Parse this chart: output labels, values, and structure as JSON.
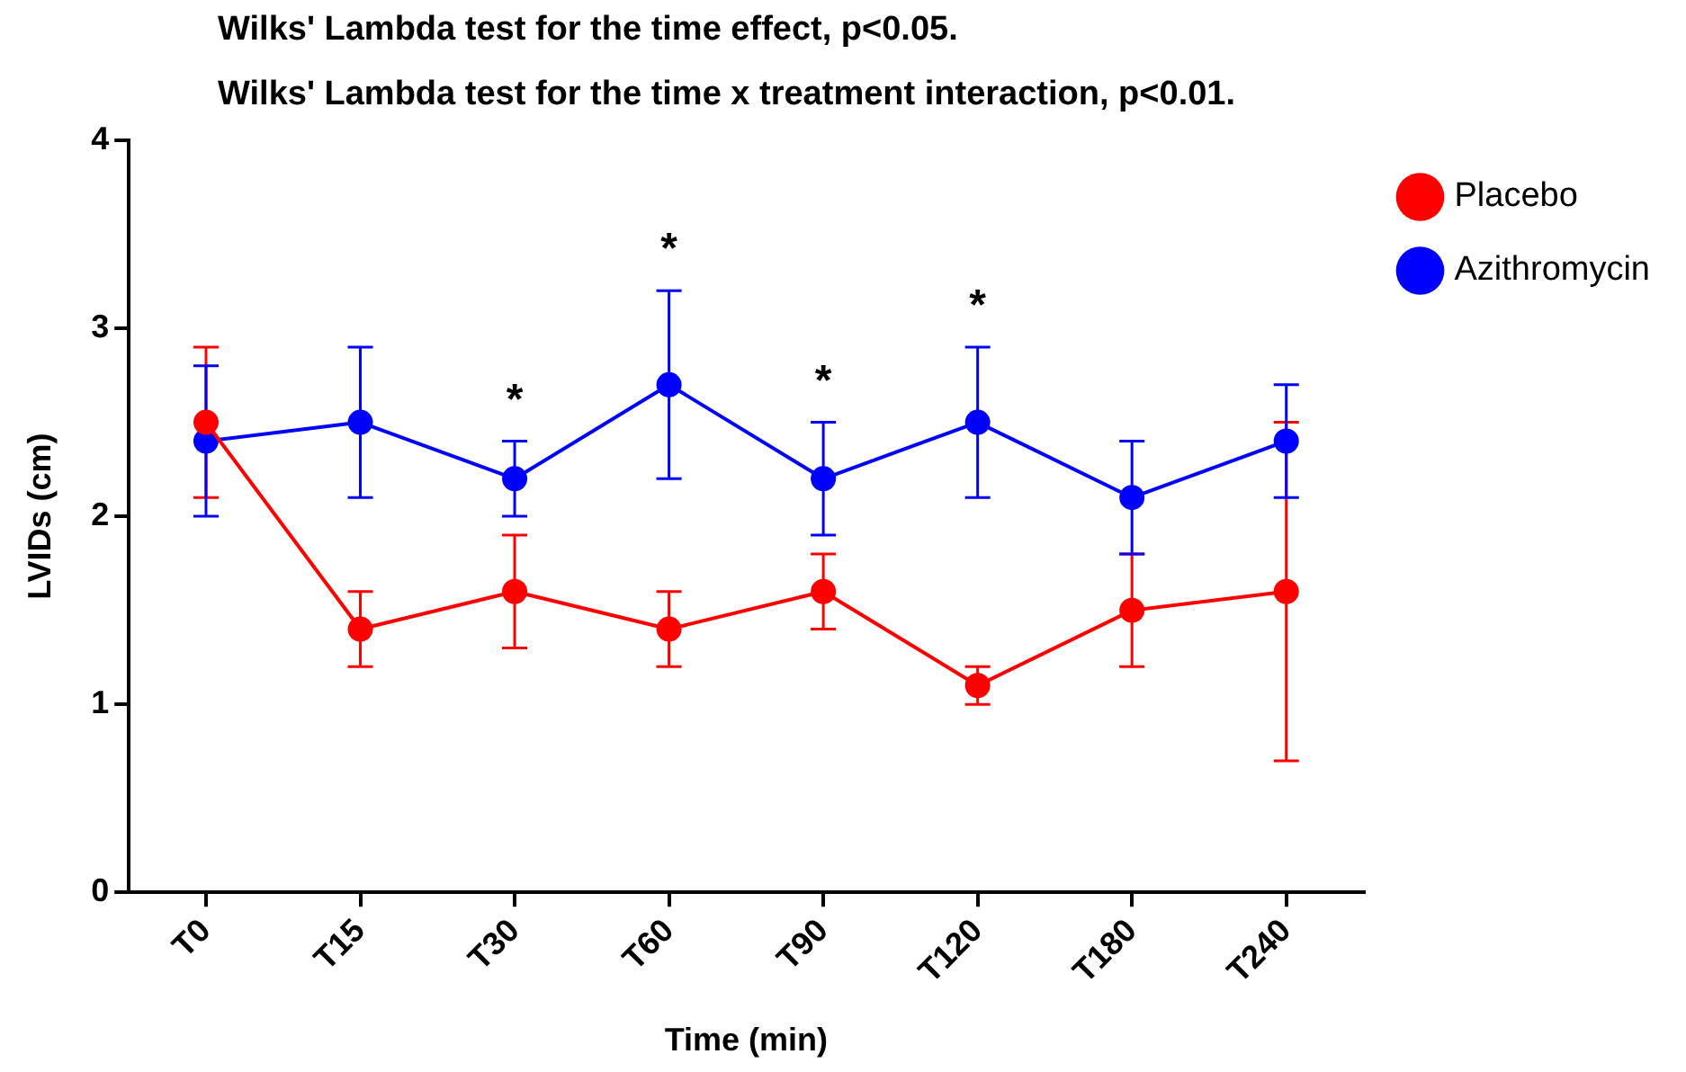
{
  "chart_data": {
    "type": "line",
    "title": "Wilks' Lambda test for the time effect, p<0.05.",
    "subtitle": "Wilks' Lambda test for the time x treatment interaction, p<0.01.",
    "xlabel": "Time (min)",
    "ylabel": "LVIDs (cm)",
    "categories": [
      "T0",
      "T15",
      "T30",
      "T60",
      "T90",
      "T120",
      "T180",
      "T240"
    ],
    "series": [
      {
        "name": "Placebo",
        "color": "#ff0000",
        "values": [
          2.5,
          1.4,
          1.6,
          1.4,
          1.6,
          1.1,
          1.5,
          1.6
        ],
        "errors": [
          [
            2.1,
            2.9
          ],
          [
            1.2,
            1.6
          ],
          [
            1.3,
            1.9
          ],
          [
            1.2,
            1.6
          ],
          [
            1.4,
            1.8
          ],
          [
            1.0,
            1.2
          ],
          [
            1.2,
            1.8
          ],
          [
            0.7,
            2.5
          ]
        ]
      },
      {
        "name": "Azithromycin",
        "color": "#0000ff",
        "values": [
          2.4,
          2.5,
          2.2,
          2.7,
          2.2,
          2.5,
          2.1,
          2.4
        ],
        "errors": [
          [
            2.0,
            2.8
          ],
          [
            2.1,
            2.9
          ],
          [
            2.0,
            2.4
          ],
          [
            2.2,
            3.2
          ],
          [
            1.9,
            2.5
          ],
          [
            2.1,
            2.9
          ],
          [
            1.8,
            2.4
          ],
          [
            2.1,
            2.7
          ]
        ]
      }
    ],
    "annotations": [
      {
        "text": "*",
        "x": "T30",
        "y": 2.4
      },
      {
        "text": "*",
        "x": "T60",
        "y": 3.2
      },
      {
        "text": "*",
        "x": "T90",
        "y": 2.5
      },
      {
        "text": "*",
        "x": "T120",
        "y": 2.9
      }
    ],
    "ylim": [
      0,
      4
    ],
    "yticks": [
      0,
      1,
      2,
      3,
      4
    ],
    "grid": false,
    "legend": "top right",
    "marker": "circle",
    "line_style": "solid"
  }
}
